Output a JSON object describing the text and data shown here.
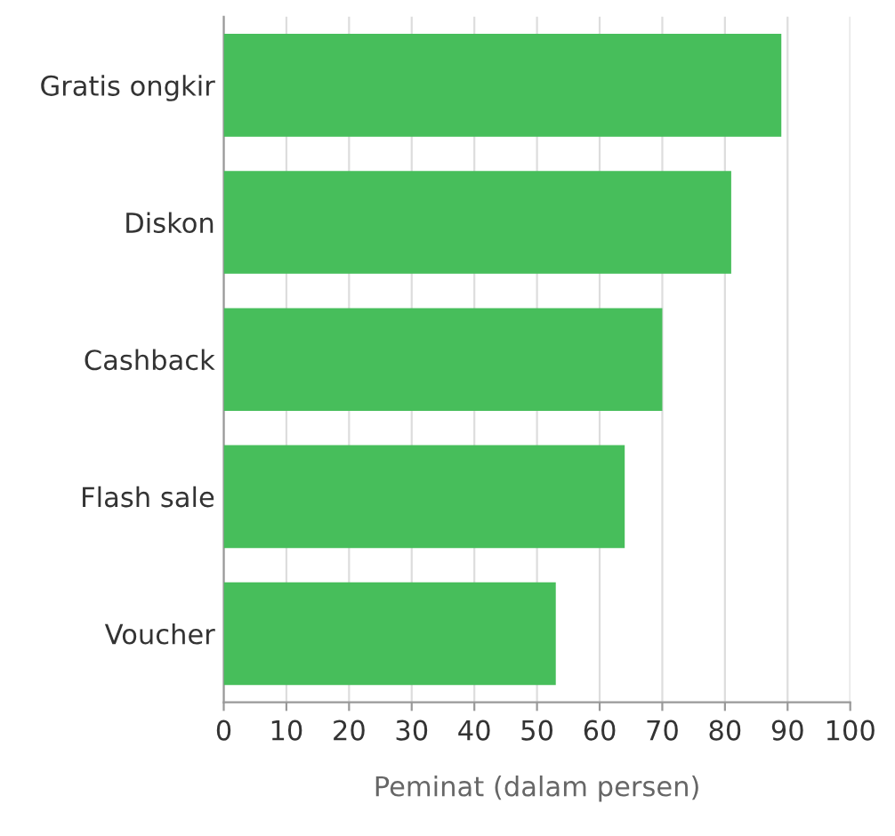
{
  "chart_data": {
    "type": "bar",
    "orientation": "horizontal",
    "categories": [
      "Gratis ongkir",
      "Diskon",
      "Cashback",
      "Flash sale",
      "Voucher"
    ],
    "values": [
      89,
      81,
      70,
      64,
      53
    ],
    "color": "#47be5b",
    "xlim": [
      0,
      100
    ],
    "xticks": [
      0,
      10,
      20,
      30,
      40,
      50,
      60,
      70,
      80,
      90,
      100
    ],
    "grid": "x",
    "xlabel": "Peminat (dalam persen)"
  }
}
